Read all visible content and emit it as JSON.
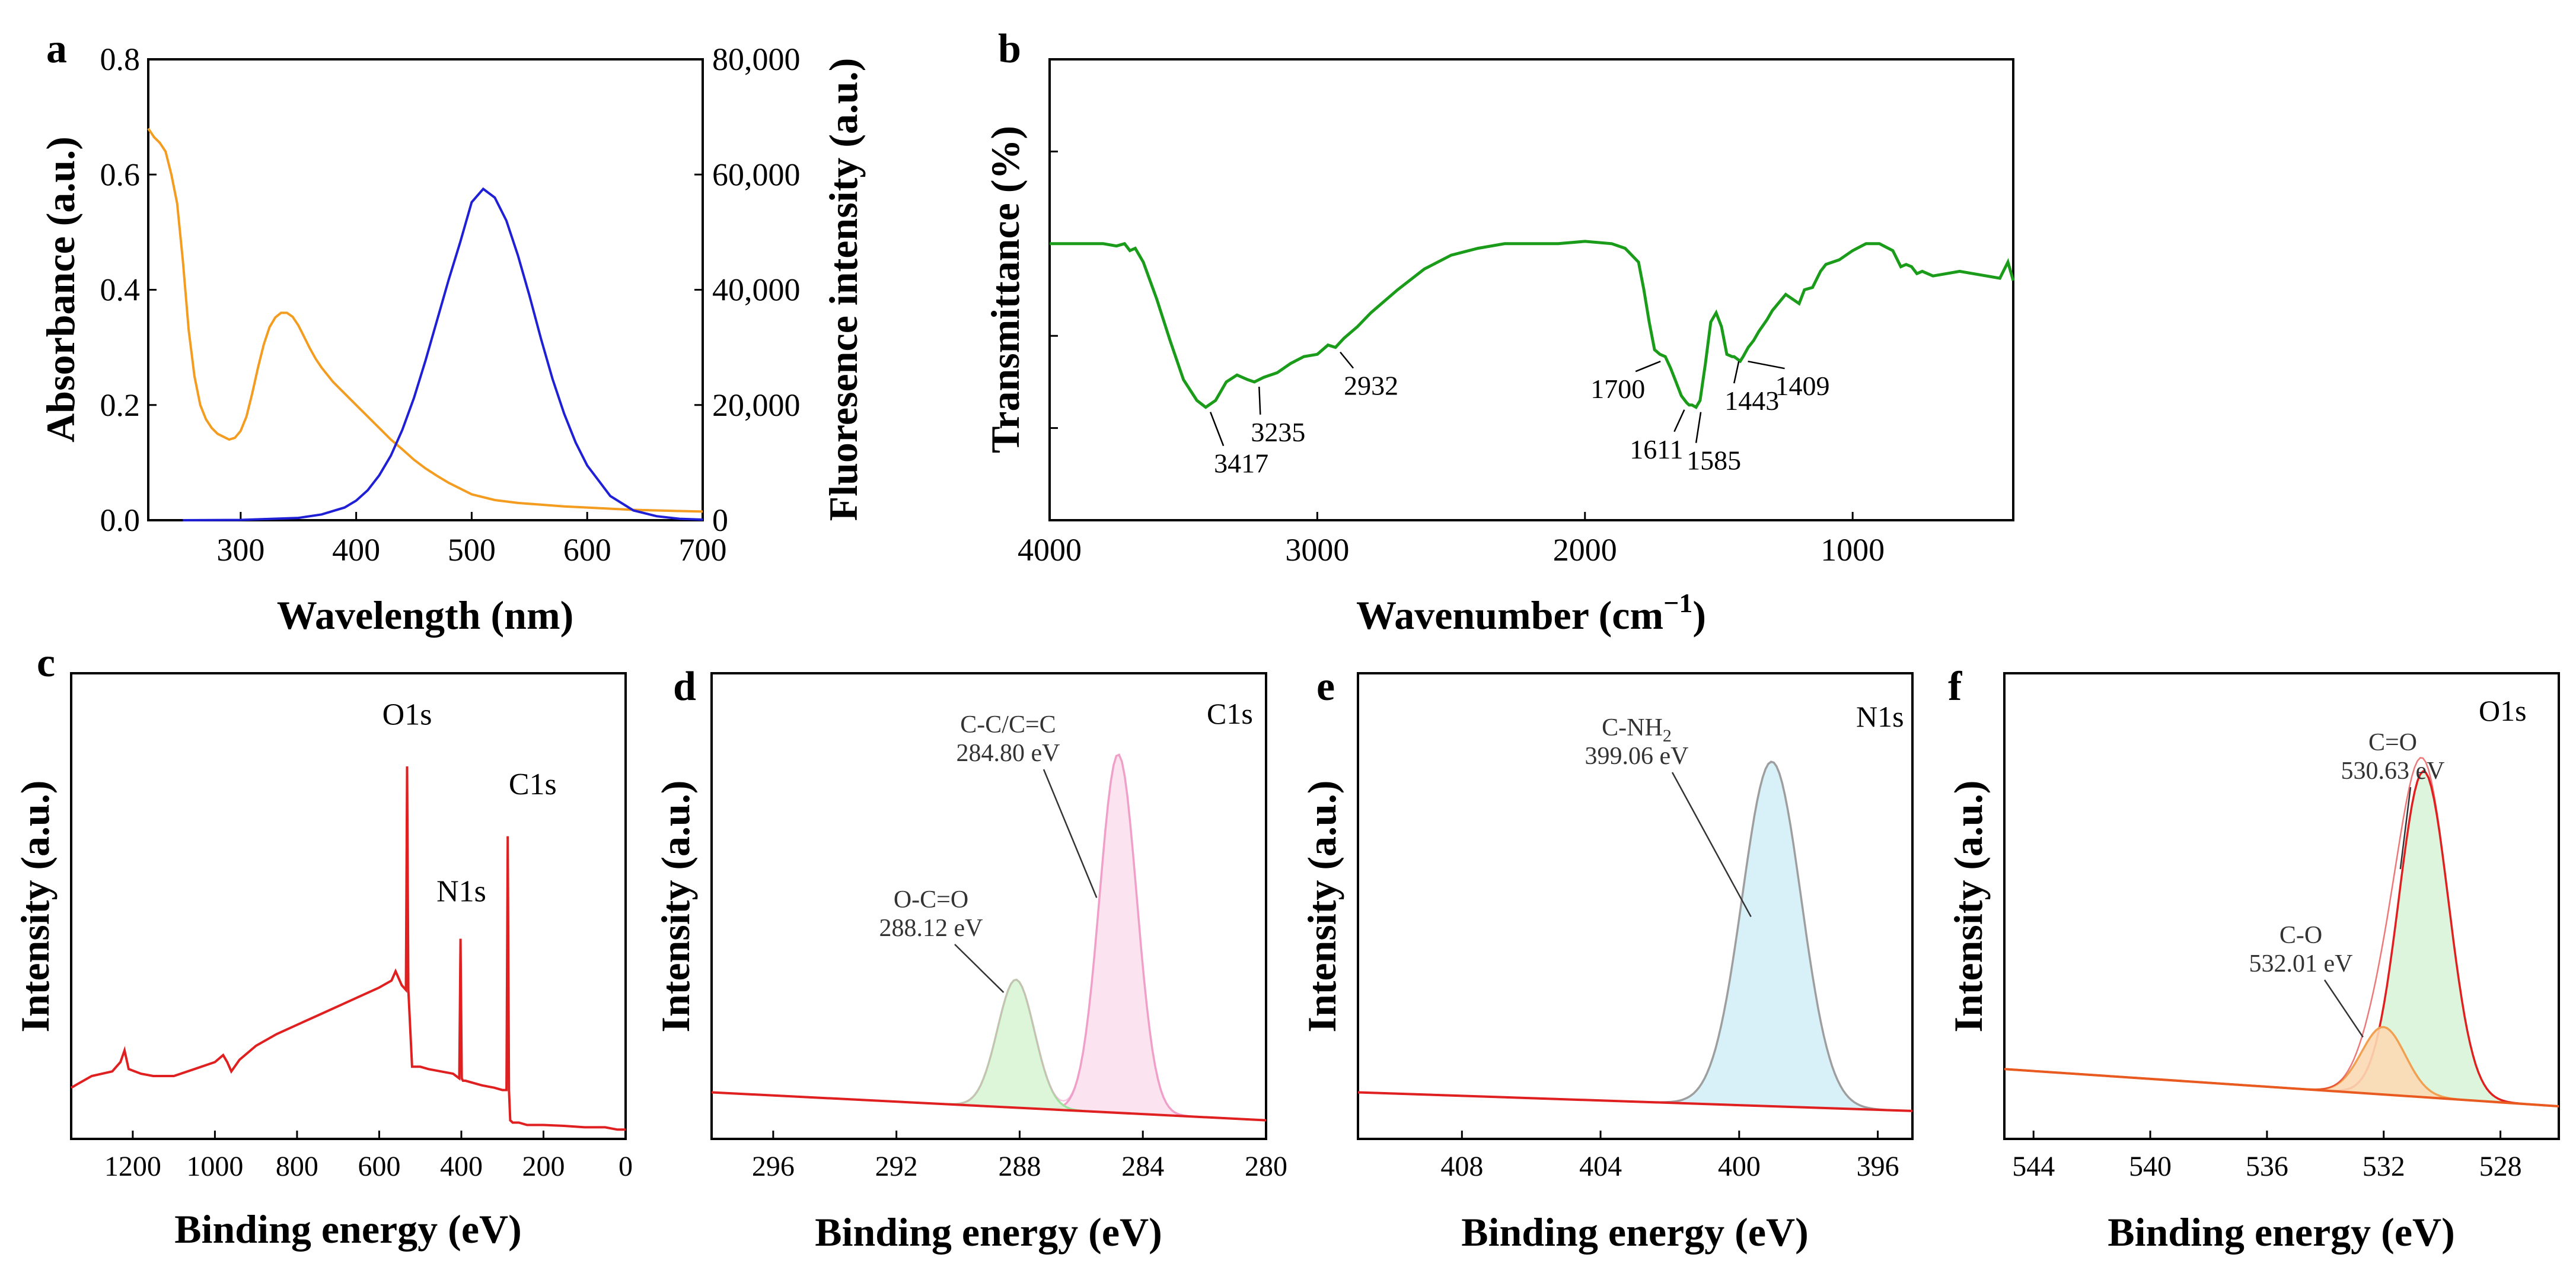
{
  "chart_data": [
    {
      "id": "a",
      "type": "line",
      "panel_label": "a",
      "xlabel": "Wavelength (nm)",
      "ylabel": "Absorbance (a.u.)",
      "ylabel_right": "Fluoresence intensity (a.u.)",
      "xlim": [
        220,
        700
      ],
      "ylim": [
        0,
        0.8
      ],
      "ylim_right": [
        0,
        80000
      ],
      "xticks": [
        300,
        400,
        500,
        600,
        700
      ],
      "xtick_labels": [
        "300",
        "400",
        "500",
        "600",
        "700"
      ],
      "yticks": [
        0,
        0.2,
        0.4,
        0.6,
        0.8
      ],
      "ytick_labels": [
        "0.0",
        "0.2",
        "0.4",
        "0.6",
        "0.8"
      ],
      "yticks_right": [
        0,
        20000,
        40000,
        60000,
        80000
      ],
      "ytick_labels_right": [
        "0",
        "20,000",
        "40,000",
        "60,000",
        "80,000"
      ],
      "series": [
        {
          "name": "Absorbance",
          "axis": "left",
          "color": "#f39c1f",
          "x": [
            220,
            225,
            230,
            235,
            240,
            245,
            250,
            255,
            260,
            265,
            270,
            275,
            280,
            285,
            290,
            295,
            300,
            305,
            310,
            315,
            320,
            325,
            330,
            335,
            340,
            345,
            350,
            355,
            360,
            365,
            370,
            380,
            390,
            400,
            410,
            420,
            430,
            440,
            450,
            460,
            470,
            480,
            500,
            520,
            540,
            560,
            580,
            600,
            620,
            640,
            660,
            680,
            700
          ],
          "y": [
            0.68,
            0.665,
            0.655,
            0.64,
            0.6,
            0.55,
            0.45,
            0.33,
            0.25,
            0.2,
            0.175,
            0.16,
            0.15,
            0.145,
            0.14,
            0.143,
            0.155,
            0.18,
            0.22,
            0.265,
            0.305,
            0.335,
            0.352,
            0.36,
            0.36,
            0.353,
            0.338,
            0.318,
            0.298,
            0.28,
            0.265,
            0.24,
            0.22,
            0.2,
            0.18,
            0.16,
            0.14,
            0.123,
            0.105,
            0.09,
            0.077,
            0.065,
            0.045,
            0.035,
            0.03,
            0.027,
            0.024,
            0.022,
            0.02,
            0.018,
            0.017,
            0.016,
            0.015
          ]
        },
        {
          "name": "Fluorescence",
          "axis": "right",
          "color": "#1f1fd6",
          "x": [
            250,
            300,
            350,
            370,
            390,
            400,
            410,
            420,
            430,
            440,
            450,
            460,
            470,
            480,
            490,
            500,
            510,
            520,
            530,
            540,
            550,
            560,
            570,
            580,
            590,
            600,
            620,
            640,
            660,
            680,
            700
          ],
          "y": [
            0,
            50,
            400,
            1000,
            2200,
            3400,
            5200,
            7800,
            11200,
            15700,
            21200,
            27700,
            34700,
            41700,
            48200,
            55200,
            57500,
            56000,
            52000,
            46000,
            39000,
            31500,
            24500,
            18500,
            13500,
            9500,
            4200,
            1700,
            700,
            250,
            100
          ]
        }
      ]
    },
    {
      "id": "b",
      "type": "line",
      "panel_label": "b",
      "xlabel": "Wavenumber (cm",
      "xlabel_sup": "−1",
      "xlabel_close": ")",
      "ylabel": "Transmittance (%)",
      "xlim": [
        4000,
        400
      ],
      "ylim": [
        0,
        10
      ],
      "xticks": [
        4000,
        3000,
        2000,
        1000
      ],
      "xtick_labels": [
        "4000",
        "3000",
        "2000",
        "1000"
      ],
      "yticks": [
        2,
        4,
        6,
        8
      ],
      "series": [
        {
          "name": "FTIR",
          "color": "#1a9c1a",
          "x": [
            4000,
            3900,
            3800,
            3750,
            3720,
            3700,
            3680,
            3650,
            3600,
            3550,
            3500,
            3450,
            3417,
            3380,
            3340,
            3300,
            3260,
            3235,
            3200,
            3150,
            3100,
            3050,
            3000,
            2960,
            2932,
            2900,
            2850,
            2800,
            2700,
            2600,
            2500,
            2400,
            2300,
            2200,
            2100,
            2000,
            1900,
            1850,
            1800,
            1780,
            1760,
            1740,
            1720,
            1700,
            1680,
            1660,
            1640,
            1620,
            1611,
            1600,
            1585,
            1570,
            1550,
            1530,
            1510,
            1490,
            1470,
            1450,
            1443,
            1420,
            1409,
            1390,
            1370,
            1350,
            1320,
            1300,
            1250,
            1200,
            1180,
            1150,
            1120,
            1100,
            1050,
            1000,
            950,
            900,
            850,
            820,
            800,
            780,
            760,
            740,
            700,
            650,
            600,
            550,
            500,
            450,
            420,
            400
          ],
          "y": [
            6.0,
            6.0,
            6.0,
            5.95,
            6.0,
            5.85,
            5.9,
            5.6,
            4.8,
            3.9,
            3.05,
            2.6,
            2.45,
            2.6,
            3.0,
            3.15,
            3.05,
            3.0,
            3.1,
            3.2,
            3.4,
            3.55,
            3.6,
            3.8,
            3.75,
            3.95,
            4.2,
            4.5,
            5.0,
            5.45,
            5.75,
            5.9,
            6.0,
            6.0,
            6.0,
            6.05,
            6.0,
            5.9,
            5.6,
            5.0,
            4.3,
            3.7,
            3.6,
            3.55,
            3.3,
            3.0,
            2.7,
            2.55,
            2.5,
            2.5,
            2.45,
            2.6,
            3.4,
            4.3,
            4.5,
            4.2,
            3.6,
            3.55,
            3.55,
            3.45,
            3.55,
            3.75,
            3.9,
            4.1,
            4.35,
            4.55,
            4.9,
            4.7,
            5.0,
            5.05,
            5.4,
            5.55,
            5.65,
            5.85,
            6.0,
            6.0,
            5.85,
            5.5,
            5.55,
            5.5,
            5.35,
            5.4,
            5.3,
            5.35,
            5.4,
            5.35,
            5.3,
            5.25,
            5.6,
            5.2
          ]
        }
      ],
      "annotations": [
        {
          "label": "3417",
          "x": 3417
        },
        {
          "label": "3235",
          "x": 3235
        },
        {
          "label": "2932",
          "x": 2932
        },
        {
          "label": "1700",
          "x": 1700
        },
        {
          "label": "1611",
          "x": 1611
        },
        {
          "label": "1585",
          "x": 1585
        },
        {
          "label": "1443",
          "x": 1443
        },
        {
          "label": "1409",
          "x": 1409
        }
      ]
    },
    {
      "id": "c",
      "type": "line",
      "panel_label": "c",
      "xlabel": "Binding energy (eV)",
      "ylabel": "Intensity (a.u.)",
      "xlim": [
        1350,
        0
      ],
      "ylim": [
        0,
        10
      ],
      "xticks": [
        1200,
        1000,
        800,
        600,
        400,
        200,
        0
      ],
      "xtick_labels": [
        "1200",
        "1000",
        "800",
        "600",
        "400",
        "200",
        "0"
      ],
      "series": [
        {
          "name": "Survey",
          "color": "#e02020",
          "x": [
            1350,
            1300,
            1250,
            1230,
            1220,
            1210,
            1180,
            1150,
            1100,
            1050,
            1000,
            980,
            970,
            960,
            940,
            900,
            850,
            800,
            750,
            700,
            650,
            600,
            570,
            560,
            545,
            535,
            532,
            529,
            520,
            500,
            480,
            450,
            420,
            405,
            402,
            399,
            396,
            390,
            370,
            350,
            320,
            300,
            290,
            287,
            284,
            281,
            275,
            260,
            240,
            200,
            150,
            100,
            50,
            20,
            5,
            0
          ],
          "y": [
            1.1,
            1.35,
            1.45,
            1.65,
            1.9,
            1.5,
            1.4,
            1.35,
            1.35,
            1.5,
            1.65,
            1.8,
            1.65,
            1.45,
            1.7,
            2.0,
            2.25,
            2.45,
            2.65,
            2.85,
            3.05,
            3.25,
            3.4,
            3.6,
            3.3,
            3.2,
            8.0,
            3.2,
            1.55,
            1.55,
            1.5,
            1.45,
            1.4,
            1.3,
            4.3,
            1.3,
            1.25,
            1.25,
            1.2,
            1.15,
            1.1,
            1.05,
            1.05,
            6.5,
            1.05,
            0.4,
            0.35,
            0.35,
            0.3,
            0.3,
            0.28,
            0.25,
            0.25,
            0.2,
            0.2,
            0.2
          ]
        }
      ],
      "annotations": [
        {
          "label": "O1s"
        },
        {
          "label": "N1s"
        },
        {
          "label": "C1s"
        }
      ]
    },
    {
      "id": "d",
      "type": "line",
      "panel_label": "d",
      "corner_label": "C1s",
      "xlabel": "Binding energy (eV)",
      "ylabel": "Intensity (a.u.)",
      "xlim": [
        298,
        280
      ],
      "ylim": [
        0,
        10
      ],
      "xticks": [
        296,
        292,
        288,
        284,
        280
      ],
      "xtick_labels": [
        "296",
        "292",
        "288",
        "284",
        "280"
      ],
      "background": {
        "color": "#e02020",
        "y_left": 1.0,
        "y_right": 0.4,
        "mid": 286.0
      },
      "peaks": [
        {
          "name": "C-C/C=C",
          "center": 284.8,
          "height": 7.7,
          "sigma": 0.6,
          "color": "#f0a0c8",
          "fill": "#fbe0ee"
        },
        {
          "name": "O-C=O",
          "center": 288.12,
          "height": 2.75,
          "sigma": 0.6,
          "color": "#9ee39e",
          "fill": "#d9f5d6"
        }
      ],
      "annotations": [
        {
          "label": "C-C/C=C",
          "label2": "284.80 eV"
        },
        {
          "label": "O-C=O",
          "label2": "288.12 eV"
        }
      ]
    },
    {
      "id": "e",
      "type": "line",
      "panel_label": "e",
      "corner_label": "N1s",
      "xlabel": "Binding energy (eV)",
      "ylabel": "Intensity (a.u.)",
      "xlim": [
        411,
        395
      ],
      "ylim": [
        0,
        10
      ],
      "xticks": [
        408,
        404,
        400,
        396
      ],
      "xtick_labels": [
        "408",
        "404",
        "400",
        "396"
      ],
      "background": {
        "color": "#e02020",
        "y_left": 1.0,
        "y_right": 0.6
      },
      "peaks": [
        {
          "name": "C-NH2",
          "center": 399.06,
          "height": 7.4,
          "sigma": 0.85,
          "color": "#9e9e9e",
          "fill": "#d4eef6"
        }
      ],
      "annotations": [
        {
          "label": "C-NH",
          "sub": "2",
          "label2": "399.06 eV"
        }
      ]
    },
    {
      "id": "f",
      "type": "line",
      "panel_label": "f",
      "corner_label": "O1s",
      "xlabel": "Binding energy (eV)",
      "ylabel": "Intensity (a.u.)",
      "xlim": [
        545,
        526
      ],
      "ylim": [
        0,
        10
      ],
      "xticks": [
        544,
        540,
        536,
        532,
        528
      ],
      "xtick_labels": [
        "544",
        "540",
        "536",
        "532",
        "528"
      ],
      "background": {
        "color": "#e85a20",
        "y_left": 1.5,
        "y_right": 0.7
      },
      "peaks": [
        {
          "name": "C=O",
          "center": 530.63,
          "height": 7.0,
          "sigma": 0.85,
          "color": "#e02020",
          "fill": "#d8f4d8"
        },
        {
          "name": "C-O",
          "center": 532.01,
          "height": 1.45,
          "sigma": 0.75,
          "color": "#f0a050",
          "fill": "#fcd9b4"
        }
      ],
      "annotations": [
        {
          "label": "C=O",
          "label2": "530.63 eV"
        },
        {
          "label": "C-O",
          "label2": "532.01 eV"
        }
      ]
    }
  ]
}
